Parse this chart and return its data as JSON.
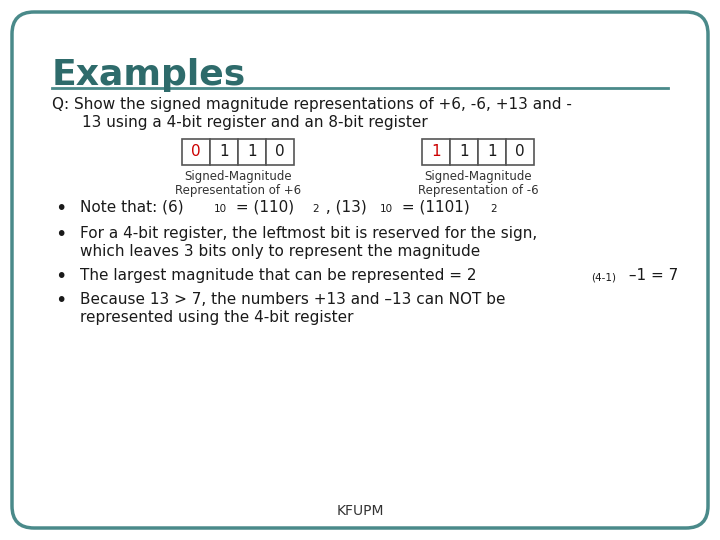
{
  "title": "Examples",
  "title_color": "#2E6B6B",
  "bg_color": "#FFFFFF",
  "border_color": "#4A8A8A",
  "question_line1": "Q: Show the signed magnitude representations of +6, -6, +13 and -",
  "question_line2": "13 using a 4-bit register and an 8-bit register",
  "diagram1_bits": [
    "0",
    "1",
    "1",
    "0"
  ],
  "diagram1_sign_color": "#CC0000",
  "diagram1_label1": "Signed-Magnitude",
  "diagram1_label2": "Representation of +6",
  "diagram2_bits": [
    "1",
    "1",
    "1",
    "0"
  ],
  "diagram2_sign_color": "#CC0000",
  "diagram2_label1": "Signed-Magnitude",
  "diagram2_label2": "Representation of -6",
  "bullet2_line1": "For a 4-bit register, the leftmost bit is reserved for the sign,",
  "bullet2_line2": "which leaves 3 bits only to represent the magnitude",
  "bullet3_prefix": "The largest magnitude that can be represented = 2",
  "bullet3_exp": "(4-1)",
  "bullet3_end": " –1 = 7",
  "bullet4_line1": "Because 13 > 7, the numbers +13 and –13 can NOT be",
  "bullet4_line2": "represented using the 4-bit register",
  "footer": "KFUPM",
  "font_family": "DejaVu Sans",
  "text_color": "#1a1a1a",
  "bullet_color": "#1a1a1a"
}
